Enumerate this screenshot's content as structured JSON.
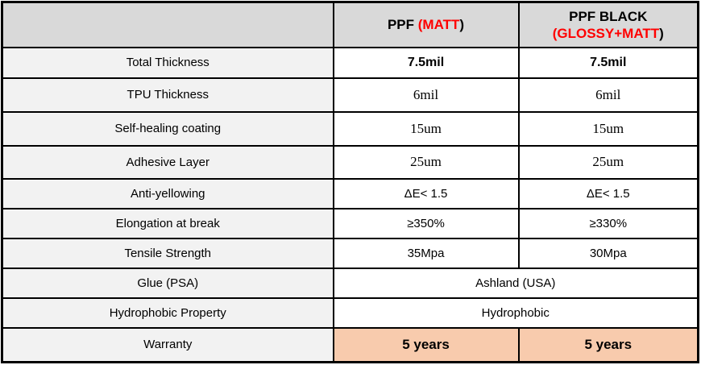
{
  "colors": {
    "header_bg": "#d9d9d9",
    "label_column_bg": "#f2f2f2",
    "warranty_bg": "#f8cbad",
    "highlight_red": "#ff0000",
    "grid_line": "#000000"
  },
  "table": {
    "header": {
      "corner": "",
      "col_matt": {
        "prefix": "PPF ",
        "highlight": "(MATT",
        "suffix": ")"
      },
      "col_black": {
        "line1": "PPF BLACK",
        "highlight": "(GLOSSY+MATT",
        "suffix": ")"
      }
    },
    "rows": [
      {
        "label": "Total Thickness",
        "values": [
          "7.5mil",
          "7.5mil"
        ]
      },
      {
        "label": "TPU Thickness",
        "values": [
          "6mil",
          "6mil"
        ]
      },
      {
        "label": "Self-healing coating",
        "values": [
          "15um",
          "15um"
        ]
      },
      {
        "label": "Adhesive Layer",
        "values": [
          "25um",
          "25um"
        ]
      },
      {
        "label": "Anti-yellowing",
        "values": [
          "ΔE< 1.5",
          "ΔE< 1.5"
        ]
      },
      {
        "label": "Elongation at break",
        "values": [
          "≥350%",
          "≥330%"
        ]
      },
      {
        "label": "Tensile Strength",
        "values": [
          "35Mpa",
          "30Mpa"
        ]
      },
      {
        "label": "Glue (PSA)",
        "span": "Ashland (USA)"
      },
      {
        "label": "Hydrophobic Property",
        "span": "Hydrophobic"
      },
      {
        "label": "Warranty",
        "values": [
          "5 years",
          "5 years"
        ]
      }
    ]
  }
}
